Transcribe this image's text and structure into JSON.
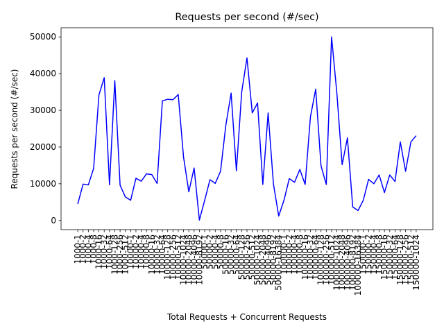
{
  "chart_data": {
    "type": "line",
    "title": "Requests per second (#/sec)",
    "xlabel": "Total Requests + Concurrent Requests",
    "ylabel": "Requests per second (#/sec)",
    "ylim": [
      -2500,
      52500
    ],
    "yticks": [
      0,
      10000,
      20000,
      30000,
      40000,
      50000
    ],
    "grid": false,
    "line_color": "#0000ff",
    "categories": [
      "1000-1",
      "1000-2",
      "1000-4",
      "1000-8",
      "1000-16",
      "1000-32",
      "1000-64",
      "1000-128",
      "1000-256",
      "1000-512",
      "10000-1",
      "10000-2",
      "10000-4",
      "10000-8",
      "10000-16",
      "10000-32",
      "10000-64",
      "10000-128",
      "10000-256",
      "10000-512",
      "10000-1024",
      "10000-2048",
      "10000-4096",
      "10000-8192",
      "50000-1",
      "50000-2",
      "50000-4",
      "50000-8",
      "50000-16",
      "50000-32",
      "50000-64",
      "50000-128",
      "50000-256",
      "50000-512",
      "50000-1024",
      "50000-2048",
      "50000-4096",
      "50000-8192",
      "50000-16384",
      "100000-1",
      "100000-2",
      "100000-4",
      "100000-8",
      "100000-16",
      "100000-32",
      "100000-64",
      "100000-128",
      "100000-256",
      "100000-512",
      "100000-1024",
      "100000-2048",
      "100000-4096",
      "100000-8192",
      "100000-16384",
      "150000-1",
      "150000-2",
      "150000-4",
      "150000-8",
      "150000-16",
      "150000-32",
      "150000-64",
      "150000-128",
      "150000-256",
      "150000-512",
      "150000-1024"
    ],
    "series": [
      {
        "values": [
          4500,
          9900,
          9700,
          14200,
          34200,
          38900,
          9700,
          38100,
          9600,
          6400,
          5500,
          11500,
          10700,
          12700,
          12500,
          10100,
          32600,
          33000,
          32900,
          34300,
          17300,
          7800,
          14300,
          100,
          5500,
          11100,
          10100,
          13400,
          25900,
          34700,
          13500,
          35000,
          44300,
          29300,
          32000,
          9800,
          29300,
          10000,
          1200,
          5500,
          11400,
          10400,
          13900,
          9800,
          28200,
          35800,
          14900,
          9800,
          50000,
          34700,
          15200,
          22500,
          3700,
          2700,
          5500,
          11200,
          10000,
          12400,
          7600,
          12400,
          10600,
          21400,
          13400,
          21400,
          23100
        ]
      }
    ]
  }
}
